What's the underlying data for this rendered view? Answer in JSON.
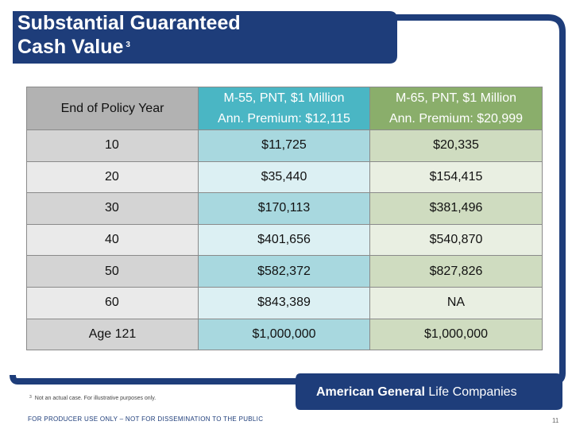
{
  "slide": {
    "title_line1": "Substantial Guaranteed",
    "title_line2": "Cash Value",
    "title_footnote_ref": "3",
    "colors": {
      "navy": "#1e3d7a",
      "teal": "#4ab6c4",
      "green": "#8aae6b",
      "gray": "#b2b2b2"
    }
  },
  "table": {
    "headers": [
      {
        "line1": "End of Policy Year",
        "line2": ""
      },
      {
        "line1": "M-55, PNT, $1 Million",
        "line2": "Ann. Premium: $12,115"
      },
      {
        "line1": "M-65, PNT, $1 Million",
        "line2": "Ann. Premium: $20,999"
      }
    ],
    "rows": [
      [
        "10",
        "$11,725",
        "$20,335"
      ],
      [
        "20",
        "$35,440",
        "$154,415"
      ],
      [
        "30",
        "$170,113",
        "$381,496"
      ],
      [
        "40",
        "$401,656",
        "$540,870"
      ],
      [
        "50",
        "$582,372",
        "$827,826"
      ],
      [
        "60",
        "$843,389",
        "NA"
      ],
      [
        "Age 121",
        "$1,000,000",
        "$1,000,000"
      ]
    ]
  },
  "footer": {
    "footnote_mark": "3",
    "footnote_text": "Not an actual case. For illustrative purposes only.",
    "logo_brand": "American General",
    "logo_rest": "Life Companies",
    "producer_notice": "FOR PRODUCER USE ONLY – NOT FOR DISSEMINATION TO THE PUBLIC",
    "page_number": "11"
  }
}
